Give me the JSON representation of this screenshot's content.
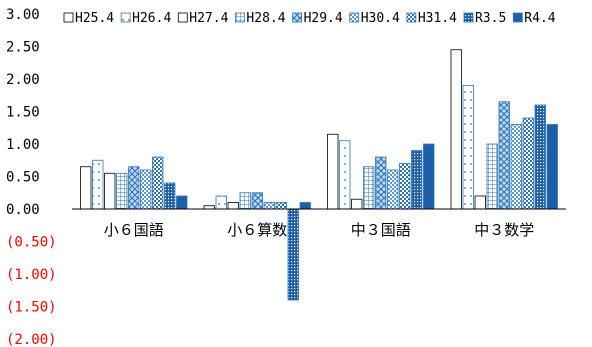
{
  "chart_data": {
    "type": "bar",
    "title": "",
    "xlabel": "",
    "ylabel": "",
    "ylim": [
      -2.0,
      3.0
    ],
    "ytick_step": 0.5,
    "ytick_labels": [
      "3.00",
      "2.50",
      "2.00",
      "1.50",
      "1.00",
      "0.50",
      "0.00",
      "(0.50)",
      "(1.00)",
      "(1.50)",
      "(2.00)"
    ],
    "negative_label_color": "#ff0000",
    "grid": false,
    "legend_position": "top",
    "categories": [
      "小６国語",
      "小６算数",
      "中３国語",
      "中３数学"
    ],
    "series": [
      {
        "name": "H25.4",
        "pattern": "blank",
        "values": [
          0.65,
          0.05,
          1.15,
          2.45
        ]
      },
      {
        "name": "H26.4",
        "pattern": "dots",
        "values": [
          0.75,
          0.2,
          1.05,
          1.9
        ]
      },
      {
        "name": "H27.4",
        "pattern": "blank",
        "values": [
          0.55,
          0.1,
          0.15,
          0.2
        ]
      },
      {
        "name": "H28.4",
        "pattern": "grid",
        "values": [
          0.55,
          0.25,
          0.65,
          1.0
        ]
      },
      {
        "name": "H29.4",
        "pattern": "diamond",
        "values": [
          0.65,
          0.25,
          0.8,
          1.65
        ]
      },
      {
        "name": "H30.4",
        "pattern": "light",
        "values": [
          0.6,
          0.1,
          0.6,
          1.3
        ]
      },
      {
        "name": "H31.4",
        "pattern": "checker",
        "values": [
          0.8,
          0.1,
          0.7,
          1.4
        ]
      },
      {
        "name": "R3.5",
        "pattern": "dense",
        "values": [
          0.4,
          -1.4,
          0.9,
          1.6
        ]
      },
      {
        "name": "R4.4",
        "pattern": "solid",
        "values": [
          0.2,
          0.1,
          1.0,
          1.3
        ]
      }
    ]
  }
}
